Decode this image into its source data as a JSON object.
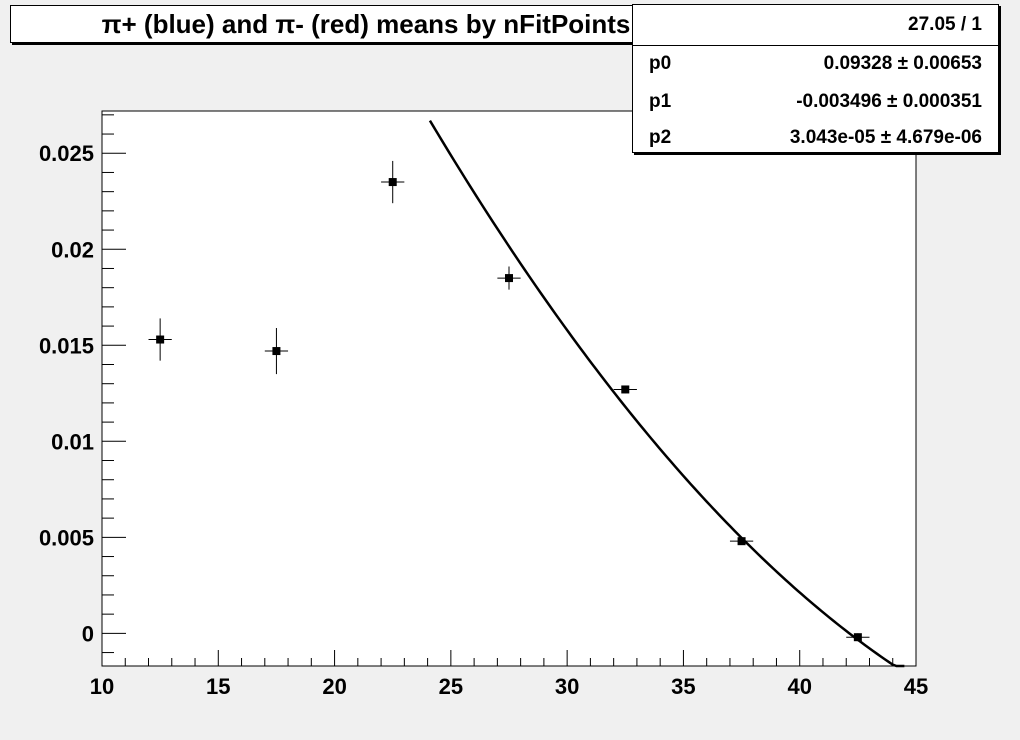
{
  "title": "π+ (blue) and π- (red) means by nFitPoints",
  "stats": {
    "chi2_ndf": "27.05 / 1",
    "params": [
      {
        "name": "p0",
        "value": "0.09328 ± 0.00653"
      },
      {
        "name": "p1",
        "value": "-0.003496 ± 0.000351"
      },
      {
        "name": "p2",
        "value": "3.043e-05 ± 4.679e-06"
      }
    ]
  },
  "chart_data": {
    "type": "scatter",
    "title": "π+ (blue) and π- (red) means by nFitPoints",
    "xlabel": "",
    "ylabel": "",
    "xlim": [
      10,
      45
    ],
    "ylim": [
      -0.0017,
      0.0272
    ],
    "x_ticks": [
      "10",
      "15",
      "20",
      "25",
      "30",
      "35",
      "40",
      "45"
    ],
    "y_ticks": [
      "0",
      "0.005",
      "0.01",
      "0.015",
      "0.02",
      "0.025"
    ],
    "points": [
      {
        "x": 12.5,
        "y": 0.0153,
        "xerr": 0.5,
        "yerr": 0.0011
      },
      {
        "x": 17.5,
        "y": 0.0147,
        "xerr": 0.5,
        "yerr": 0.0012
      },
      {
        "x": 22.5,
        "y": 0.0235,
        "xerr": 0.5,
        "yerr": 0.0011
      },
      {
        "x": 27.5,
        "y": 0.0185,
        "xerr": 0.5,
        "yerr": 0.0006
      },
      {
        "x": 32.5,
        "y": 0.0127,
        "xerr": 0.5,
        "yerr": 0.0002
      },
      {
        "x": 37.5,
        "y": 0.0048,
        "xerr": 0.5,
        "yerr": 0.0002
      },
      {
        "x": 42.5,
        "y": -0.0002,
        "xerr": 0.5,
        "yerr": 0.0002
      }
    ],
    "fit": {
      "p0": 0.09328,
      "p1": -0.003496,
      "p2": 3.043e-05,
      "x_range": [
        24.1,
        44.5
      ]
    },
    "grid": false
  }
}
